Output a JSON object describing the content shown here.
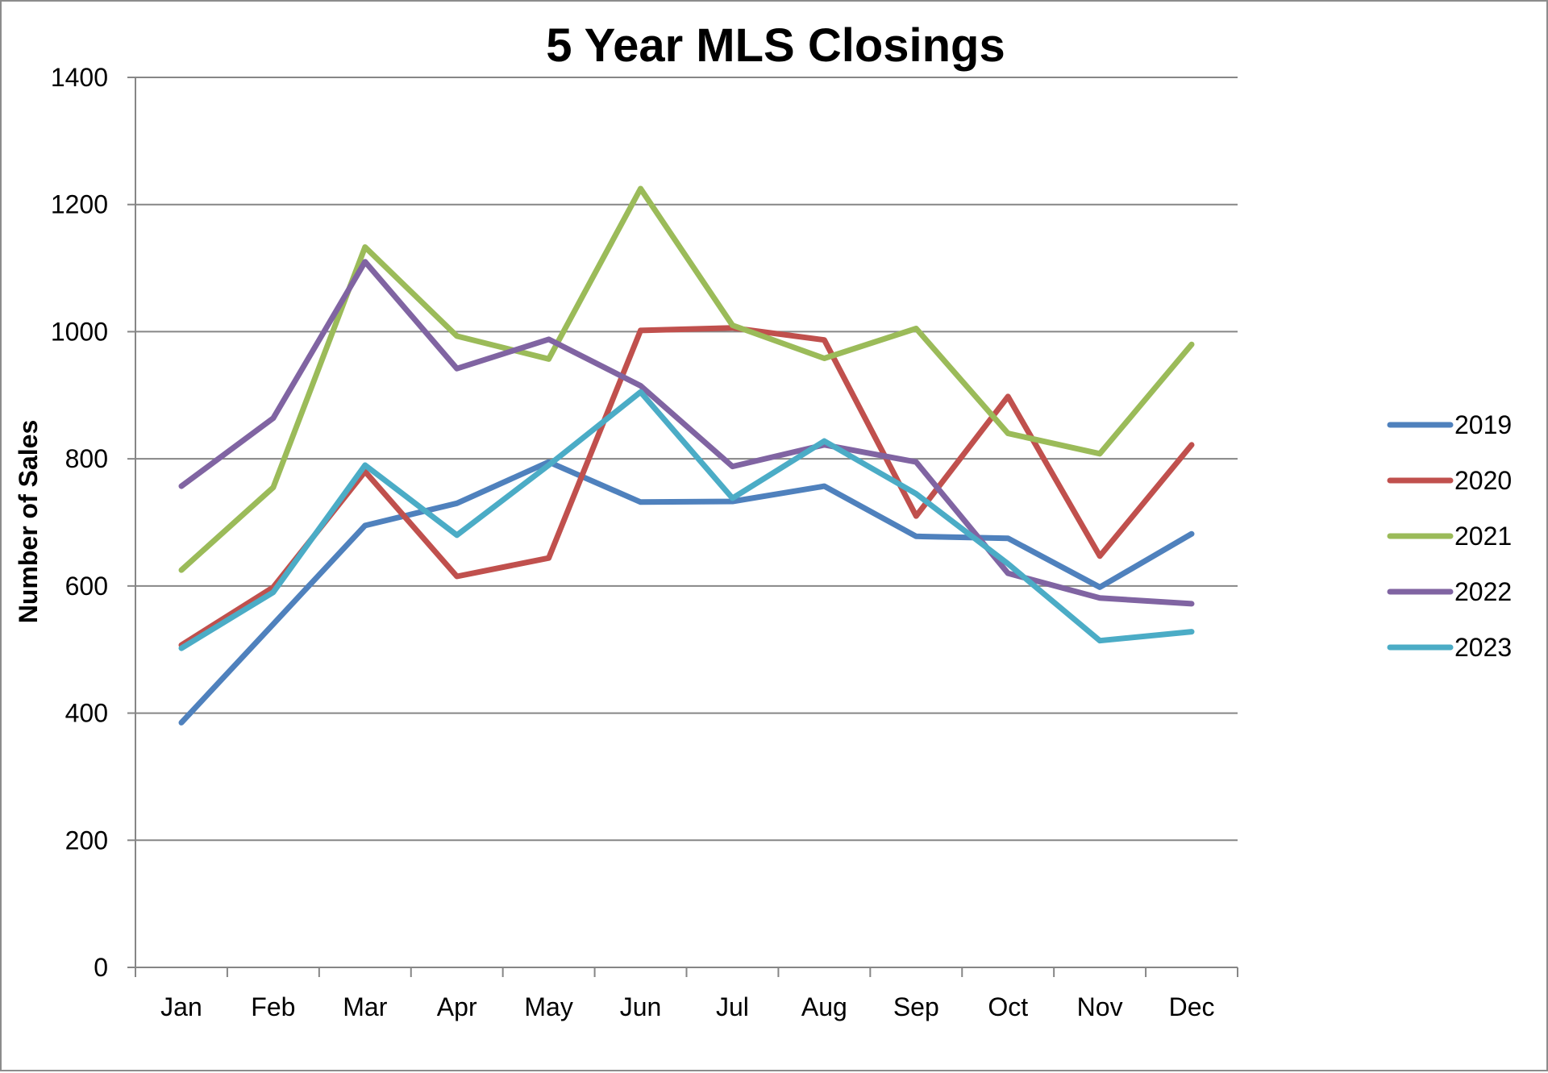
{
  "chart_data": {
    "type": "line",
    "title": "5 Year MLS Closings",
    "xlabel": "",
    "ylabel": "Number of Sales",
    "ylim": [
      0,
      1400
    ],
    "yticks": [
      0,
      200,
      400,
      600,
      800,
      1000,
      1200,
      1400
    ],
    "grid": true,
    "legend_position": "right",
    "categories": [
      "Jan",
      "Feb",
      "Mar",
      "Apr",
      "May",
      "Jun",
      "Jul",
      "Aug",
      "Sep",
      "Oct",
      "Nov",
      "Dec"
    ],
    "series": [
      {
        "name": "2019",
        "color": "#4f81bd",
        "values": [
          385,
          540,
          695,
          730,
          795,
          732,
          733,
          757,
          678,
          675,
          598,
          682
        ]
      },
      {
        "name": "2020",
        "color": "#c0504d",
        "values": [
          507,
          598,
          780,
          615,
          644,
          1002,
          1006,
          987,
          710,
          898,
          647,
          822
        ]
      },
      {
        "name": "2021",
        "color": "#9bbb59",
        "values": [
          625,
          755,
          1133,
          993,
          957,
          1225,
          1010,
          958,
          1005,
          840,
          808,
          980
        ]
      },
      {
        "name": "2022",
        "color": "#8064a2",
        "values": [
          757,
          864,
          1110,
          942,
          988,
          915,
          788,
          822,
          795,
          620,
          581,
          572
        ]
      },
      {
        "name": "2023",
        "color": "#4bacc6",
        "values": [
          502,
          590,
          790,
          680,
          790,
          905,
          738,
          828,
          745,
          635,
          514,
          528
        ]
      }
    ]
  }
}
